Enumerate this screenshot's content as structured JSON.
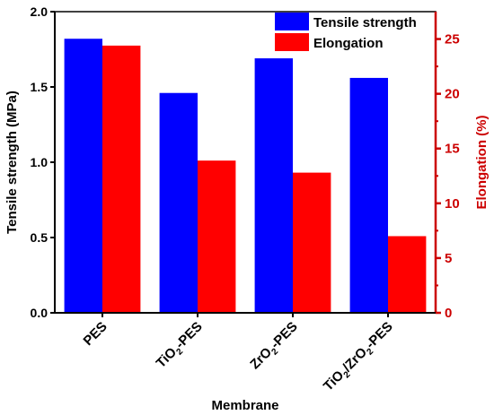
{
  "chart_data": {
    "type": "bar",
    "categories": [
      {
        "id": "pes",
        "parts": [
          {
            "t": "PES"
          }
        ]
      },
      {
        "id": "tio2-pes",
        "parts": [
          {
            "t": "TiO"
          },
          {
            "t": "2",
            "sub": true
          },
          {
            "t": "-PES"
          }
        ]
      },
      {
        "id": "zro2-pes",
        "parts": [
          {
            "t": "ZrO"
          },
          {
            "t": "2",
            "sub": true
          },
          {
            "t": "-PES"
          }
        ]
      },
      {
        "id": "tio2-zro2-pes",
        "parts": [
          {
            "t": "TiO"
          },
          {
            "t": "2",
            "sub": true
          },
          {
            "t": "/ZrO"
          },
          {
            "t": "2",
            "sub": true
          },
          {
            "t": "-PES"
          }
        ]
      }
    ],
    "series": [
      {
        "name": "Tensile strength",
        "axis": "left",
        "color": "#0000ff",
        "values": [
          1.82,
          1.46,
          1.69,
          1.56
        ]
      },
      {
        "name": "Elongation",
        "axis": "right",
        "color": "#ff0000",
        "values": [
          24.4,
          13.9,
          12.8,
          7.0
        ]
      }
    ],
    "xlabel": "Membrane",
    "ylabel_left": "Tensile strength (MPa)",
    "ylabel_right": "Elongation (%)",
    "ylim_left": [
      0,
      2.0
    ],
    "ylim_right": [
      0,
      27.5
    ],
    "yticks_left": [
      "0.0",
      "0.5",
      "1.0",
      "1.5",
      "2.0"
    ],
    "yticks_right": [
      "0",
      "5",
      "10",
      "15",
      "20",
      "25"
    ],
    "left_axis_color": "#000000",
    "right_axis_color": "#cc0000",
    "grid": false,
    "legend_position": "top-right"
  }
}
